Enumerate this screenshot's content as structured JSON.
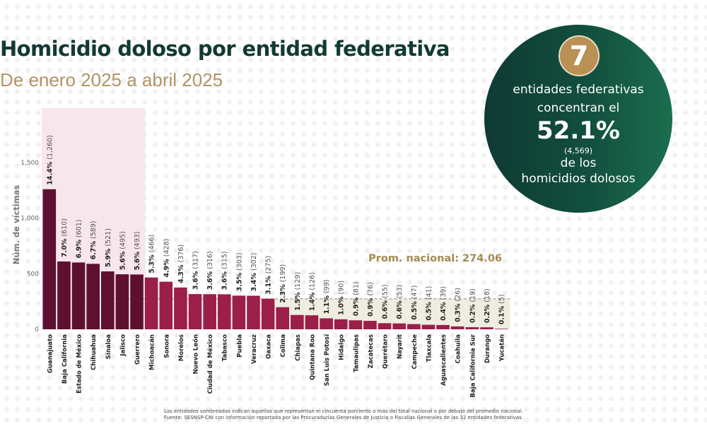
{
  "header": {
    "title": "Homicidio doloso por entidad federativa",
    "subtitle": "De enero 2025 a abril 2025"
  },
  "highlight": {
    "count": "7",
    "line1": "entidades federativas",
    "line2": "concentran el",
    "percent": "52.1%",
    "total": "(4,569)",
    "line3": "de los",
    "line4": "homicidios dolosos"
  },
  "colors": {
    "top_bar": "#5e1030",
    "bar": "#9b1f48",
    "top_shade": "#f7e6ec",
    "below_avg_shade": "#efeddf",
    "avg_label": "#a58a4f",
    "title": "#123a33",
    "subtitle": "#b09468"
  },
  "chart_data": {
    "type": "bar",
    "title": "Homicidio doloso por entidad federativa",
    "subtitle": "De enero 2025 a abril 2025",
    "xlabel": "",
    "ylabel": "Núm. de víctimas",
    "ylim": [
      0,
      1950
    ],
    "yticks": [
      0,
      500,
      1000,
      1500
    ],
    "ytick_labels": [
      "0",
      "500",
      "1,000",
      "1,500"
    ],
    "grid": false,
    "average": {
      "value": 274.06,
      "label": "Prom. nacional: 274.06"
    },
    "top_group_count": 7,
    "categories": [
      "Guanajuato",
      "Baja California",
      "Estado de México",
      "Chihuahua",
      "Sinaloa",
      "Jalisco",
      "Guerrero",
      "Michoacán",
      "Sonora",
      "Morelos",
      "Nuevo León",
      "Ciudad de México",
      "Tabasco",
      "Puebla",
      "Veracruz",
      "Oaxaca",
      "Colima",
      "Chiapas",
      "Quintana Roo",
      "San Luis Potosí",
      "Hidalgo",
      "Tamaulipas",
      "Zacatecas",
      "Querétaro",
      "Nayarit",
      "Campeche",
      "Tlaxcala",
      "Aguascalientes",
      "Coahuila",
      "Baja California Sur",
      "Durango",
      "Yucatán"
    ],
    "values": [
      1260,
      610,
      601,
      589,
      521,
      495,
      493,
      466,
      428,
      376,
      317,
      316,
      315,
      303,
      302,
      275,
      199,
      129,
      126,
      99,
      90,
      81,
      76,
      55,
      53,
      47,
      41,
      39,
      26,
      19,
      18,
      5
    ],
    "percent_labels": [
      "14.4%",
      "7.0%",
      "6.9%",
      "6.7%",
      "5.9%",
      "5.6%",
      "5.6%",
      "5.3%",
      "4.9%",
      "4.3%",
      "3.6%",
      "3.6%",
      "3.6%",
      "3.5%",
      "3.4%",
      "3.1%",
      "2.3%",
      "1.5%",
      "1.4%",
      "1.1%",
      "1.0%",
      "0.9%",
      "0.9%",
      "0.6%",
      "0.6%",
      "0.5%",
      "0.5%",
      "0.4%",
      "0.3%",
      "0.2%",
      "0.2%",
      "0.1%"
    ],
    "count_labels": [
      "(1,260)",
      "(610)",
      "(601)",
      "(589)",
      "(521)",
      "(495)",
      "(493)",
      "(466)",
      "(428)",
      "(376)",
      "(317)",
      "(316)",
      "(315)",
      "(303)",
      "(302)",
      "(275)",
      "(199)",
      "(129)",
      "(126)",
      "(99)",
      "(90)",
      "(81)",
      "(76)",
      "(55)",
      "(53)",
      "(47)",
      "(41)",
      "(39)",
      "(26)",
      "(19)",
      "(18)",
      "(5)"
    ]
  },
  "footnote": {
    "line1": "Las entidades sombreadas indican aquellas que representan el cincuenta porciento o más del total nacional o por debajo del promedio nacional.",
    "line2": "Fuente: SESNSP-CNI con información reportada por las Procuradurías Generales de Justicia o Fiscalías Generales de las 32 entidades federativas."
  }
}
